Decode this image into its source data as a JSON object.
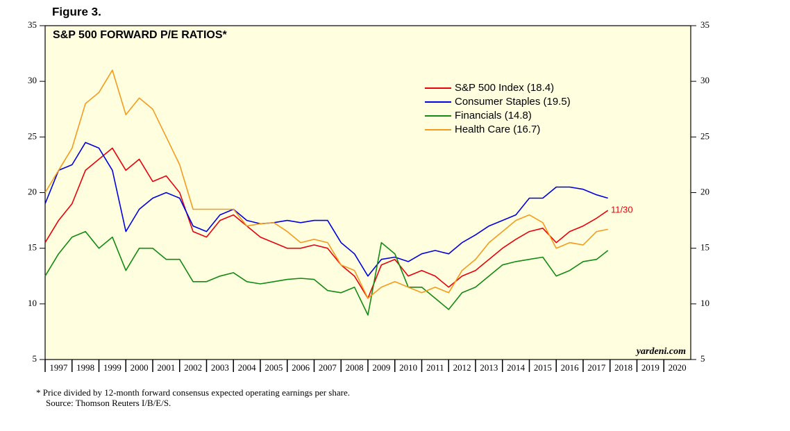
{
  "chart_data": {
    "type": "line",
    "figure_label": "Figure 3.",
    "title": "S&P 500 FORWARD P/E RATIOS*",
    "x": [
      1997,
      1997.5,
      1998,
      1998.5,
      1999,
      1999.5,
      2000,
      2000.5,
      2001,
      2001.5,
      2002,
      2002.5,
      2003,
      2003.5,
      2004,
      2004.5,
      2005,
      2005.5,
      2006,
      2006.5,
      2007,
      2007.5,
      2008,
      2008.5,
      2009,
      2009.5,
      2010,
      2010.5,
      2011,
      2011.5,
      2012,
      2012.5,
      2013,
      2013.5,
      2014,
      2014.5,
      2015,
      2015.5,
      2016,
      2016.5,
      2017,
      2017.5,
      2017.92
    ],
    "series": [
      {
        "name": "S&P 500 Index (18.4)",
        "color": "#e8000b",
        "values": [
          15.5,
          17.5,
          19,
          22,
          23,
          24,
          22,
          23,
          21,
          21.5,
          20,
          16.5,
          16,
          17.5,
          18,
          17,
          16,
          15.5,
          15,
          15,
          15.3,
          15,
          13.5,
          12.5,
          10.5,
          13.5,
          14,
          12.5,
          13,
          12.5,
          11.5,
          12.5,
          13,
          14,
          15,
          15.8,
          16.5,
          16.8,
          15.5,
          16.5,
          17,
          17.7,
          18.4
        ]
      },
      {
        "name": "Consumer Staples (19.5)",
        "color": "#0000e0",
        "values": [
          19,
          22,
          22.5,
          24.5,
          24,
          22,
          16.5,
          18.5,
          19.5,
          20,
          19.5,
          17,
          16.5,
          18,
          18.5,
          17.5,
          17.2,
          17.3,
          17.5,
          17.3,
          17.5,
          17.5,
          15.5,
          14.5,
          12.5,
          14,
          14.2,
          13.8,
          14.5,
          14.8,
          14.5,
          15.5,
          16.2,
          17,
          17.5,
          18,
          19.5,
          19.5,
          20.5,
          20.5,
          20.3,
          19.8,
          19.5
        ]
      },
      {
        "name": "Financials (14.8)",
        "color": "#128a12",
        "values": [
          12.5,
          14.5,
          16,
          16.5,
          15,
          16,
          13,
          15,
          15,
          14,
          14,
          12,
          12,
          12.5,
          12.8,
          12,
          11.8,
          12,
          12.2,
          12.3,
          12.2,
          11.2,
          11,
          11.5,
          9,
          15.5,
          14.5,
          11.5,
          11.5,
          10.5,
          9.5,
          11,
          11.5,
          12.5,
          13.5,
          13.8,
          14,
          14.2,
          12.5,
          13,
          13.8,
          14,
          14.8
        ]
      },
      {
        "name": "Health Care (16.7)",
        "color": "#f59a1d",
        "values": [
          20,
          22,
          24,
          28,
          29,
          31,
          27,
          28.5,
          27.5,
          25,
          22.5,
          18.5,
          18.5,
          18.5,
          18.5,
          17,
          17.2,
          17.3,
          16.5,
          15.5,
          15.8,
          15.5,
          13.5,
          13,
          10.5,
          11.5,
          12,
          11.5,
          11,
          11.5,
          11,
          13,
          14,
          15.5,
          16.5,
          17.5,
          18,
          17.3,
          15,
          15.5,
          15.3,
          16.5,
          16.7
        ]
      }
    ],
    "xlim": [
      1997,
      2021
    ],
    "xticks": [
      {
        "value": 1997,
        "label": "1997"
      },
      {
        "value": 1998,
        "label": "1998"
      },
      {
        "value": 1999,
        "label": "1999"
      },
      {
        "value": 2000,
        "label": "2000"
      },
      {
        "value": 2001,
        "label": "2001"
      },
      {
        "value": 2002,
        "label": "2002"
      },
      {
        "value": 2003,
        "label": "2003"
      },
      {
        "value": 2004,
        "label": "2004"
      },
      {
        "value": 2005,
        "label": "2005"
      },
      {
        "value": 2006,
        "label": "2006"
      },
      {
        "value": 2007,
        "label": "2007"
      },
      {
        "value": 2008,
        "label": "2008"
      },
      {
        "value": 2009,
        "label": "2009"
      },
      {
        "value": 2010,
        "label": "2010"
      },
      {
        "value": 2011,
        "label": "2011"
      },
      {
        "value": 2012,
        "label": "2012"
      },
      {
        "value": 2013,
        "label": "2013"
      },
      {
        "value": 2014,
        "label": "2014"
      },
      {
        "value": 2015,
        "label": "2015"
      },
      {
        "value": 2016,
        "label": "2016"
      },
      {
        "value": 2017,
        "label": "2017"
      },
      {
        "value": 2018,
        "label": "2018"
      },
      {
        "value": 2019,
        "label": "2019"
      },
      {
        "value": 2020,
        "label": "2020"
      }
    ],
    "ylim": [
      5,
      35
    ],
    "yticks": [
      5,
      10,
      15,
      20,
      25,
      30,
      35
    ],
    "date_annotation": "11/30",
    "source_mark": "yardeni.com",
    "footnote": "* Price divided by 12-month forward consensus expected operating earnings per share.",
    "source": "Source: Thomson Reuters I/B/E/S.",
    "legend": "upper-right"
  }
}
